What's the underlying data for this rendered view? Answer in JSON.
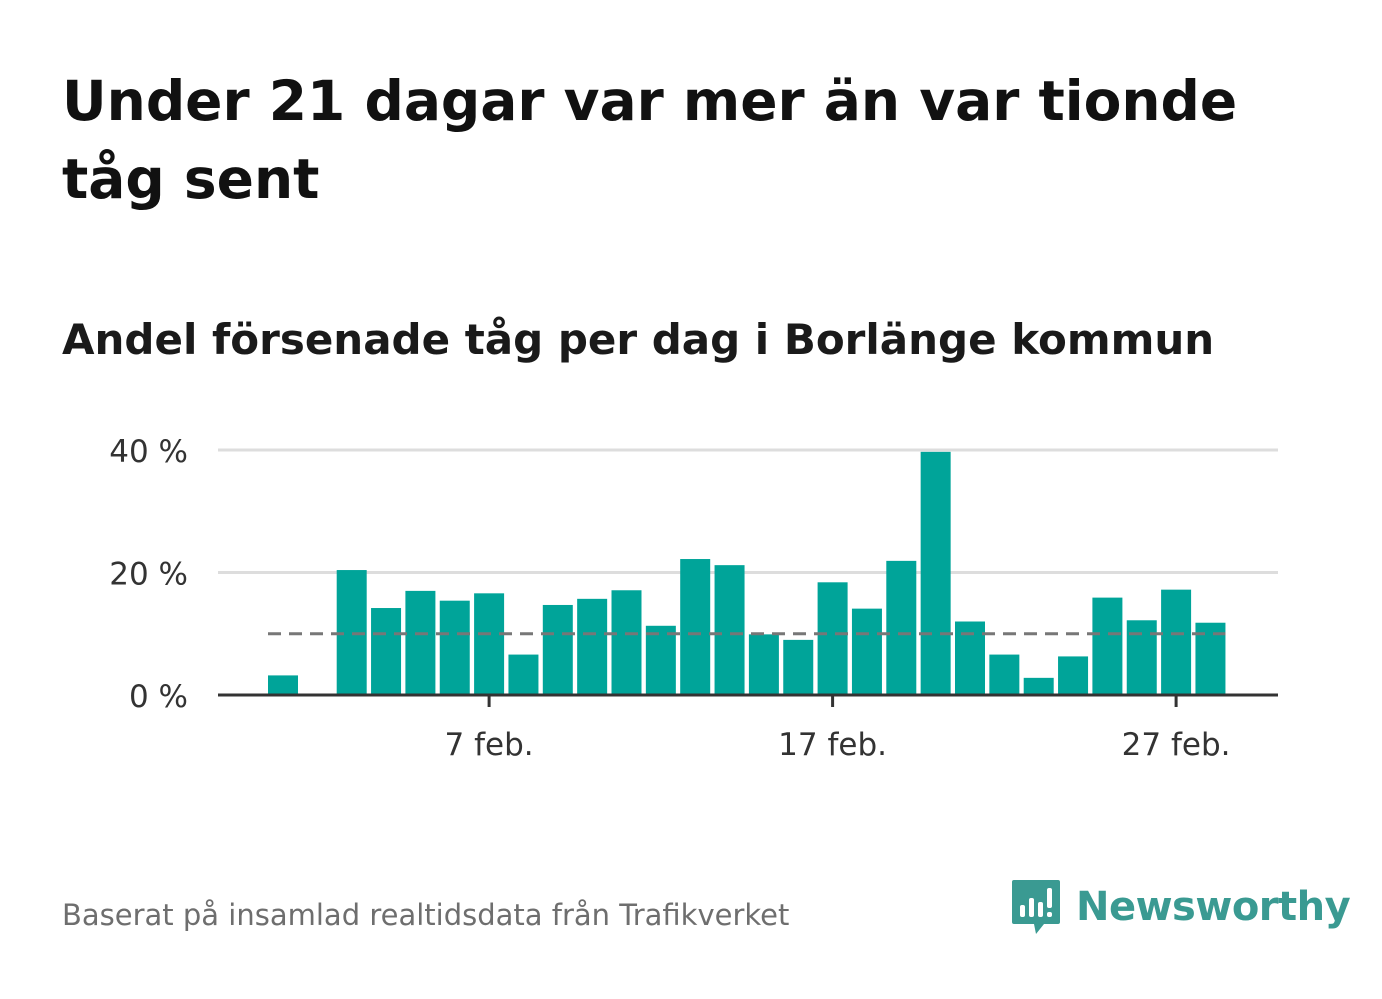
{
  "header": {
    "title": "Under 21 dagar var mer än var tionde tåg sent",
    "subtitle": "Andel försenade tåg per dag i Borlänge kommun"
  },
  "footer": {
    "source": "Baserat på insamlad realtidsdata från Trafikverket",
    "brand": "Newsworthy"
  },
  "colors": {
    "bar": "#00a499",
    "reference_line": "#777777",
    "grid": "#dddddd",
    "axis": "#333333",
    "brand": "#3a9a92"
  },
  "chart_data": {
    "type": "bar",
    "x": [
      "1 feb.",
      "2 feb.",
      "3 feb.",
      "4 feb.",
      "5 feb.",
      "6 feb.",
      "7 feb.",
      "8 feb.",
      "9 feb.",
      "10 feb.",
      "11 feb.",
      "12 feb.",
      "13 feb.",
      "14 feb.",
      "15 feb.",
      "16 feb.",
      "17 feb.",
      "18 feb.",
      "19 feb.",
      "20 feb.",
      "21 feb.",
      "22 feb.",
      "23 feb.",
      "24 feb.",
      "25 feb.",
      "26 feb.",
      "27 feb.",
      "28 feb."
    ],
    "values": [
      3.2,
      null,
      20.4,
      14.2,
      17.0,
      15.4,
      16.6,
      6.6,
      14.7,
      15.7,
      17.1,
      11.3,
      22.2,
      21.2,
      9.9,
      9.0,
      18.4,
      14.1,
      21.9,
      39.7,
      12.0,
      6.6,
      2.8,
      6.3,
      15.9,
      12.2,
      17.2,
      11.8
    ],
    "reference_value": 10,
    "x_ticks": [
      "7 feb.",
      "17 feb.",
      "27 feb."
    ],
    "x_tick_indices": [
      6,
      16,
      26
    ],
    "y_ticks": [
      0,
      20,
      40
    ],
    "y_tick_labels": [
      "0 %",
      "20 %",
      "40 %"
    ],
    "ylim": [
      0,
      40
    ],
    "grid": true,
    "legend": "none"
  }
}
